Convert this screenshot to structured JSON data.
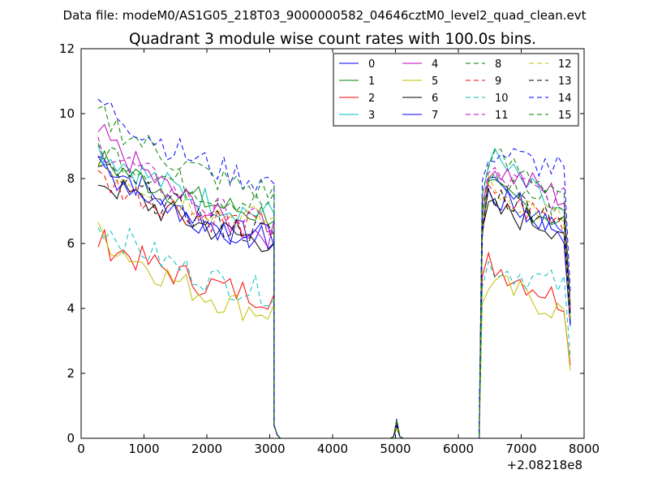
{
  "figure": {
    "suptitle": "Data file: modeM0/AS1G05_218T03_9000000582_04646cztM0_level2_quad_clean.evt",
    "offset_label": "+2.08218e8"
  },
  "chart_data": {
    "type": "line",
    "title": "Quadrant 3 module wise count rates with 100.0s bins.",
    "xlabel": "",
    "ylabel": "",
    "xlim": [
      0,
      8000
    ],
    "ylim": [
      0,
      12
    ],
    "x_ticks": [
      "0",
      "1000",
      "2000",
      "3000",
      "4000",
      "5000",
      "6000",
      "7000",
      "8000"
    ],
    "y_ticks": [
      "0",
      "2",
      "4",
      "6",
      "8",
      "10",
      "12"
    ],
    "x_tick_values": [
      0,
      1000,
      2000,
      3000,
      4000,
      5000,
      6000,
      7000,
      8000
    ],
    "y_tick_values": [
      0,
      2,
      4,
      6,
      8,
      10,
      12
    ],
    "x_offset": 208218000,
    "grid": false,
    "legend_position": "top-right",
    "legend_columns": 4,
    "segments": {
      "first": {
        "x_start": 270,
        "x_end": 3020,
        "step": 100
      },
      "second": {
        "x_start": 6380,
        "x_end": 7780,
        "step": 100
      },
      "drop_x": [
        3070,
        3120,
        3170,
        6330
      ],
      "peak_x": [
        4970,
        5020,
        5070
      ]
    },
    "series": [
      {
        "name": "0",
        "color": "#0000ff",
        "dashed": false,
        "level1": [
          8.7,
          6.1
        ],
        "level2": [
          7.6,
          6.3
        ],
        "peak": 0.4
      },
      {
        "name": "1",
        "color": "#008000",
        "dashed": false,
        "level1": [
          8.6,
          6.9
        ],
        "level2": [
          7.7,
          6.6
        ],
        "peak": 0.5
      },
      {
        "name": "2",
        "color": "#ff0000",
        "dashed": false,
        "level1": [
          6.1,
          4.4
        ],
        "level2": [
          5.5,
          4.1
        ],
        "peak": 0.3
      },
      {
        "name": "3",
        "color": "#00bfbf",
        "dashed": false,
        "level1": [
          8.9,
          6.9
        ],
        "level2": [
          8.9,
          6.6
        ],
        "peak": 0.5
      },
      {
        "name": "4",
        "color": "#bf00bf",
        "dashed": false,
        "level1": [
          9.4,
          6.3
        ],
        "level2": [
          8.5,
          7.3
        ],
        "peak": 0.5
      },
      {
        "name": "5",
        "color": "#bfbf00",
        "dashed": false,
        "level1": [
          6.3,
          3.9
        ],
        "level2": [
          4.9,
          3.8
        ],
        "peak": 0.3
      },
      {
        "name": "6",
        "color": "#000000",
        "dashed": false,
        "level1": [
          8.0,
          6.1
        ],
        "level2": [
          7.1,
          6.4
        ],
        "peak": 0.4
      },
      {
        "name": "7",
        "color": "#0000ff",
        "dashed": false,
        "level1": [
          8.4,
          6.2
        ],
        "level2": [
          7.8,
          6.4
        ],
        "peak": 0.4
      },
      {
        "name": "8",
        "color": "#008000",
        "dashed": true,
        "level1": [
          9.0,
          7.2
        ],
        "level2": [
          8.1,
          7.0
        ],
        "peak": 0.5
      },
      {
        "name": "9",
        "color": "#ff0000",
        "dashed": true,
        "level1": [
          8.0,
          6.5
        ],
        "level2": [
          7.5,
          6.6
        ],
        "peak": 0.5
      },
      {
        "name": "10",
        "color": "#00bfbf",
        "dashed": true,
        "level1": [
          6.6,
          4.5
        ],
        "level2": [
          5.4,
          4.6
        ],
        "peak": 0.4
      },
      {
        "name": "11",
        "color": "#bf00bf",
        "dashed": true,
        "level1": [
          9.1,
          6.6
        ],
        "level2": [
          8.2,
          7.2
        ],
        "peak": 0.5
      },
      {
        "name": "12",
        "color": "#bfbf00",
        "dashed": true,
        "level1": [
          8.5,
          6.7
        ],
        "level2": [
          7.8,
          6.6
        ],
        "peak": 0.4
      },
      {
        "name": "13",
        "color": "#000000",
        "dashed": true,
        "level1": [
          8.3,
          6.3
        ],
        "level2": [
          7.6,
          6.8
        ],
        "peak": 0.4
      },
      {
        "name": "14",
        "color": "#0000ff",
        "dashed": true,
        "level1": [
          10.4,
          7.9
        ],
        "level2": [
          8.9,
          8.2
        ],
        "peak": 0.6
      },
      {
        "name": "15",
        "color": "#008000",
        "dashed": true,
        "level1": [
          10.0,
          7.6
        ],
        "level2": [
          8.8,
          7.5
        ],
        "peak": 0.6
      }
    ]
  }
}
